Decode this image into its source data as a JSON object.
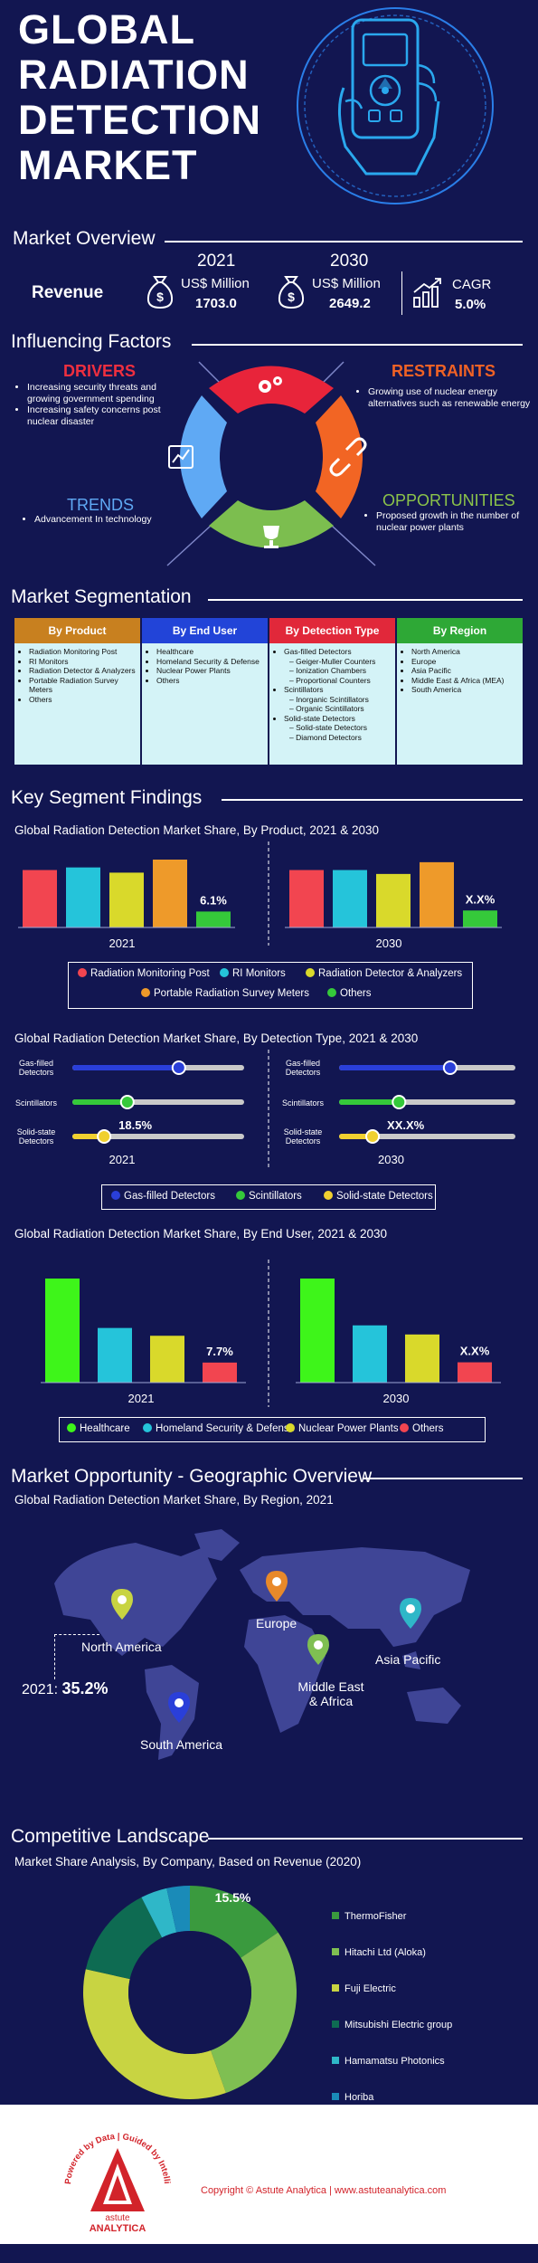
{
  "header": {
    "title_lines": [
      "GLOBAL",
      "RADIATION",
      "DETECTION",
      "MARKET"
    ]
  },
  "overview": {
    "title": "Market Overview",
    "revenue_label": "Revenue",
    "year_2021": "2021",
    "year_2030": "2030",
    "unit": "US$ Million",
    "value_2021": "1703.0",
    "value_2030": "2649.2",
    "cagr_label": "CAGR",
    "cagr_value": "5.0%"
  },
  "factors": {
    "title": "Influencing Factors",
    "drivers": {
      "title": "DRIVERS",
      "items": [
        "Increasing security threats and growing government spending",
        "Increasing safety concerns post nuclear disaster"
      ]
    },
    "restraints": {
      "title": "RESTRAINTS",
      "items": [
        "Growing use of nuclear energy alternatives such as renewable energy"
      ]
    },
    "trends": {
      "title": "TRENDS",
      "items": [
        "Advancement In technology"
      ]
    },
    "opportunities": {
      "title": "OPPORTUNITIES",
      "items": [
        "Proposed growth in the number of nuclear power plants"
      ]
    }
  },
  "segmentation": {
    "title": "Market Segmentation",
    "columns": [
      {
        "header": "By Product",
        "color": "#c8801f",
        "items": [
          {
            "text": "Radiation Monitoring Post",
            "level": 1
          },
          {
            "text": "RI Monitors",
            "level": 1
          },
          {
            "text": "Radiation Detector & Analyzers",
            "level": 1
          },
          {
            "text": "Portable Radiation Survey Meters",
            "level": 1
          },
          {
            "text": "Others",
            "level": 1
          }
        ]
      },
      {
        "header": "By End User",
        "color": "#2244d8",
        "items": [
          {
            "text": "Healthcare",
            "level": 1
          },
          {
            "text": "Homeland Security & Defense",
            "level": 1
          },
          {
            "text": "Nuclear Power Plants",
            "level": 1
          },
          {
            "text": "Others",
            "level": 1
          }
        ]
      },
      {
        "header": "By Detection Type",
        "color": "#e1283a",
        "items": [
          {
            "text": "Gas-filled Detectors",
            "level": 1
          },
          {
            "text": "Geiger-Muller Counters",
            "level": 2
          },
          {
            "text": "Ionization Chambers",
            "level": 2
          },
          {
            "text": "Proportional Counters",
            "level": 2
          },
          {
            "text": "Scintillators",
            "level": 1
          },
          {
            "text": "Inorganic Scintillators",
            "level": 2
          },
          {
            "text": "Organic Scintillators",
            "level": 2
          },
          {
            "text": "Solid-state Detectors",
            "level": 1
          },
          {
            "text": "Solid-state Detectors",
            "level": 2
          },
          {
            "text": "Diamond Detectors",
            "level": 2
          }
        ]
      },
      {
        "header": "By Region",
        "color": "#2ea836",
        "items": [
          {
            "text": "North America",
            "level": 1
          },
          {
            "text": "Europe",
            "level": 1
          },
          {
            "text": "Asia Pacific",
            "level": 1
          },
          {
            "text": "Middle East & Africa (MEA)",
            "level": 1
          },
          {
            "text": "South America",
            "level": 1
          }
        ]
      }
    ]
  },
  "findings": {
    "title": "Key Segment Findings",
    "product_title": "Global Radiation Detection Market Share, By Product, 2021 & 2030",
    "detection_title": "Global Radiation Detection Market Share, By Detection Type, 2021 & 2030",
    "enduser_title": "Global Radiation Detection Market Share, By End User, 2021 & 2030"
  },
  "geo": {
    "title": "Market Opportunity - Geographic Overview",
    "subtitle": "Global Radiation Detection Market Share, By Region, 2021",
    "regions": [
      "North America",
      "Europe",
      "Middle East & Africa",
      "Asia Pacific",
      "South America"
    ],
    "na_year": "2021:",
    "na_value": "35.2%",
    "pin_colors": [
      "#c8d442",
      "#e8892a",
      "#7fbf52",
      "#2fb7c8",
      "#2a3fd9"
    ]
  },
  "competitive": {
    "title": "Competitive Landscape",
    "subtitle": "Market Share Analysis, By Company, Based on Revenue (2020)"
  },
  "footer": {
    "copyright": "Copyright © Astute Analytica  |  www.astuteanalytica.com",
    "logo_arc_text": "Powered by Data | Guided by Intelligence",
    "logo_name_top": "astute",
    "logo_name_bottom": "ANALYTICA"
  },
  "chart_data": [
    {
      "type": "bar",
      "title": "Global Radiation Detection Market Share, By Product, 2021 & 2030",
      "categories": [
        "Radiation Monitoring Post",
        "RI Monitors",
        "Radiation Detector & Analyzers",
        "Portable Radiation Survey Meters",
        "Others"
      ],
      "colors": [
        "#f24550",
        "#25c4da",
        "#d9d92b",
        "#ee9a2a",
        "#35c93a"
      ],
      "series": [
        {
          "name": "2021",
          "values": [
            22,
            23,
            21,
            26,
            6.1
          ],
          "labels": [
            "",
            "",
            "",
            "",
            "6.1%"
          ]
        },
        {
          "name": "2030",
          "values": [
            22,
            22,
            20.5,
            25,
            6.5
          ],
          "labels": [
            "",
            "",
            "",
            "",
            "X.X%"
          ]
        }
      ]
    },
    {
      "type": "bar",
      "title": "Global Radiation Detection Market Share, By Detection Type, 2021 & 2030",
      "orientation": "horizontal-slider",
      "categories": [
        "Gas-filled Detectors",
        "Scintillators",
        "Solid-state Detectors"
      ],
      "colors": [
        "#2a3fd9",
        "#35c93a",
        "#f0d030"
      ],
      "series": [
        {
          "name": "2021",
          "values": [
            62,
            32,
            18.5
          ],
          "labels": [
            "",
            "",
            "18.5%"
          ]
        },
        {
          "name": "2030",
          "values": [
            63,
            34,
            19
          ],
          "labels": [
            "",
            "",
            "XX.X%"
          ]
        }
      ],
      "xlim": [
        0,
        100
      ]
    },
    {
      "type": "bar",
      "title": "Global Radiation Detection Market Share, By End User, 2021 & 2030",
      "categories": [
        "Healthcare",
        "Homeland Security & Defense",
        "Nuclear Power Plants",
        "Others"
      ],
      "colors": [
        "#3ef51a",
        "#25c4da",
        "#d9d92b",
        "#f24550"
      ],
      "series": [
        {
          "name": "2021",
          "values": [
            40,
            21,
            18,
            7.7
          ],
          "labels": [
            "",
            "",
            "",
            "7.7%"
          ]
        },
        {
          "name": "2030",
          "values": [
            40,
            22,
            18.5,
            7.8
          ],
          "labels": [
            "",
            "",
            "",
            "X.X%"
          ]
        }
      ]
    },
    {
      "type": "pie",
      "title": "Market Share Analysis, By Company, Based on Revenue (2020)",
      "categories": [
        "ThermoFisher",
        "Hitachi Ltd (Aloka)",
        "Fuji Electric",
        "Mitsubishi Electric group",
        "Hamamatsu Photonics",
        "Horiba"
      ],
      "values": [
        15.5,
        29,
        34,
        14,
        4,
        3.5
      ],
      "labels": [
        "15.5%",
        "",
        "",
        "",
        "",
        ""
      ],
      "colors": [
        "#3a9a3e",
        "#7fbf52",
        "#c8d442",
        "#0e6b52",
        "#2fb7c8",
        "#1a8bb8"
      ]
    }
  ]
}
